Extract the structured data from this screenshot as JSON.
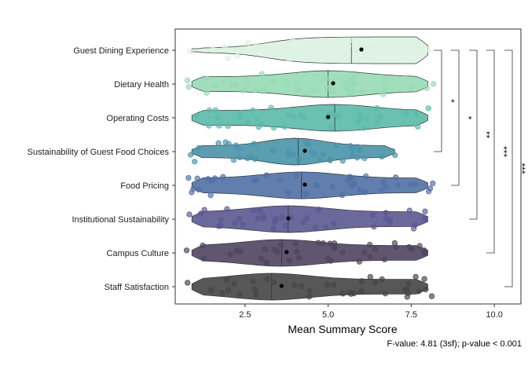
{
  "chart_data": {
    "type": "violin",
    "xlabel": "Mean Summary Score",
    "ylabel": "",
    "xlim": [
      0.4,
      10.8
    ],
    "xticks": [
      "2.5",
      "5.0",
      "7.5",
      "10.0"
    ],
    "xtick_values": [
      2.5,
      5.0,
      7.5,
      10.0
    ],
    "caption": "F-value: 4.81 (3sf); p-value < 0.001",
    "grid": false,
    "categories": [
      "Guest Dining Experience",
      "Dietary Health",
      "Operating Costs",
      "Sustainability of Guest Food Choices",
      "Food Pricing",
      "Institutional Sustainability",
      "Campus Culture",
      "Staff Satisfaction"
    ],
    "colors": [
      "#dcf2e2",
      "#96dab5",
      "#5bbaa9",
      "#4a93a9",
      "#5070a5",
      "#5b5891",
      "#4f4460",
      "#454545"
    ],
    "median": [
      5.7,
      5.0,
      5.2,
      4.1,
      4.2,
      3.8,
      3.6,
      3.3
    ],
    "mean": [
      6.0,
      5.15,
      5.0,
      4.3,
      4.3,
      3.8,
      3.75,
      3.6
    ],
    "range": [
      [
        0.9,
        8.0
      ],
      [
        0.9,
        8.0
      ],
      [
        0.9,
        8.0
      ],
      [
        0.9,
        7.0
      ],
      [
        0.9,
        8.0
      ],
      [
        0.9,
        8.0
      ],
      [
        0.9,
        8.0
      ],
      [
        0.9,
        8.0
      ]
    ],
    "significance": [
      {
        "from": "Guest Dining Experience",
        "to": "Sustainability of Guest Food Choices",
        "label": "*"
      },
      {
        "from": "Guest Dining Experience",
        "to": "Food Pricing",
        "label": "*"
      },
      {
        "from": "Guest Dining Experience",
        "to": "Institutional Sustainability",
        "label": "**"
      },
      {
        "from": "Guest Dining Experience",
        "to": "Campus Culture",
        "label": "***"
      },
      {
        "from": "Guest Dining Experience",
        "to": "Staff Satisfaction",
        "label": "***"
      }
    ]
  }
}
